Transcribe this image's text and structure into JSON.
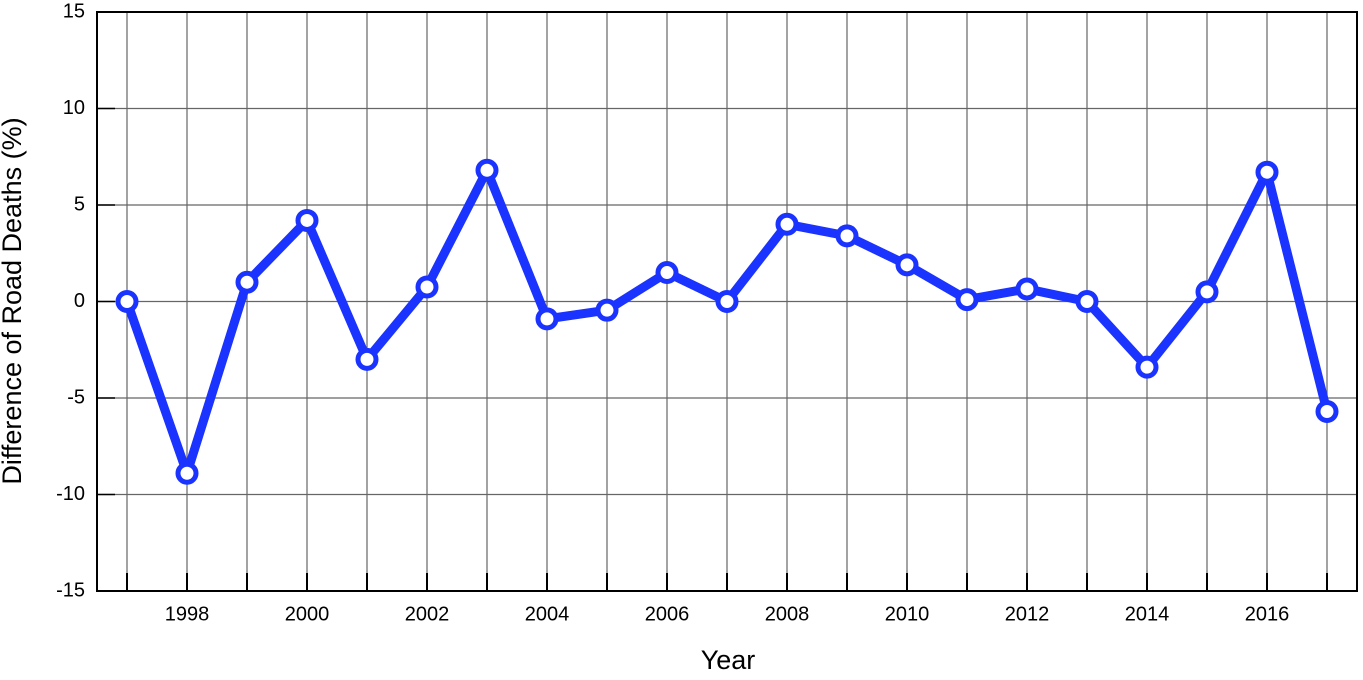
{
  "chart_data": {
    "type": "line",
    "xlabel": "Year",
    "ylabel": "Difference of Road Deaths (%)",
    "x": [
      1997,
      1998,
      1999,
      2000,
      2001,
      2002,
      2003,
      2004,
      2005,
      2006,
      2007,
      2008,
      2009,
      2010,
      2011,
      2012,
      2013,
      2014,
      2015,
      2016,
      2017
    ],
    "series": [
      {
        "color": "#1a33ff",
        "values": [
          0,
          -8.9,
          1.0,
          4.2,
          -3.0,
          0.75,
          6.8,
          -0.9,
          -0.45,
          1.5,
          0,
          4.0,
          3.4,
          1.9,
          0.1,
          0.65,
          0,
          -3.4,
          0.5,
          6.7,
          -5.7
        ]
      }
    ],
    "xlim": [
      1996.5,
      2017.5
    ],
    "xticks": [
      1998,
      2000,
      2002,
      2004,
      2006,
      2008,
      2010,
      2012,
      2014,
      2016
    ],
    "xminorticks": [
      1997,
      1999,
      2001,
      2003,
      2005,
      2007,
      2009,
      2011,
      2013,
      2015,
      2017
    ],
    "ylim": [
      -15,
      15
    ],
    "yticks": [
      -15,
      -10,
      -5,
      0,
      5,
      10,
      15
    ],
    "grid": true
  }
}
